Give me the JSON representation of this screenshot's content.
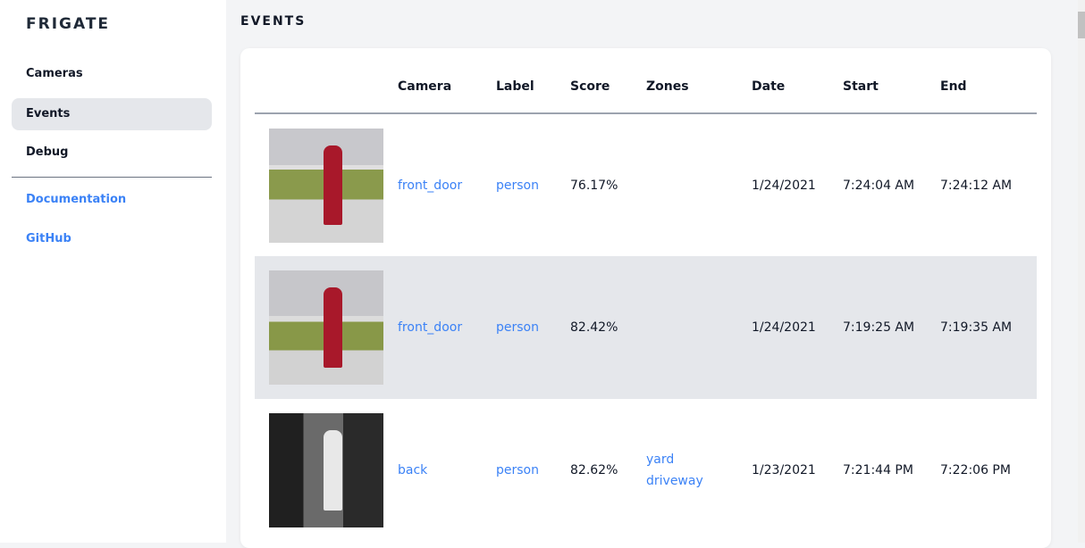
{
  "sidebar": {
    "brand": "FRIGATE",
    "items": [
      {
        "label": "Cameras"
      },
      {
        "label": "Events",
        "active": true
      },
      {
        "label": "Debug"
      }
    ],
    "links": [
      {
        "label": "Documentation"
      },
      {
        "label": "GitHub"
      }
    ]
  },
  "page": {
    "title": "EVENTS"
  },
  "table": {
    "headers": [
      "",
      "Camera",
      "Label",
      "Score",
      "Zones",
      "Date",
      "Start",
      "End"
    ],
    "rows": [
      {
        "camera": "front_door",
        "label": "person",
        "score": "76.17%",
        "zones": [
          "",
          ""
        ],
        "date": "1/24/2021",
        "start": "7:24:04 AM",
        "end": "7:24:12 AM"
      },
      {
        "camera": "front_door",
        "label": "person",
        "score": "82.42%",
        "zones": [
          "",
          ""
        ],
        "date": "1/24/2021",
        "start": "7:19:25 AM",
        "end": "7:19:35 AM"
      },
      {
        "camera": "back",
        "label": "person",
        "score": "82.62%",
        "zones": [
          "yard",
          "driveway"
        ],
        "date": "1/23/2021",
        "start": "7:21:44 PM",
        "end": "7:22:06 PM"
      }
    ]
  },
  "colors": {
    "accent": "#3b82f6",
    "active_bg": "#e5e7eb"
  }
}
